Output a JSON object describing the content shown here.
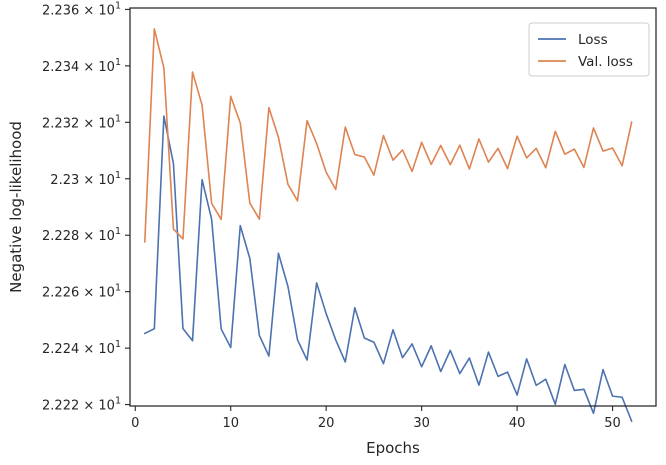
{
  "chart_data": {
    "type": "line",
    "xlabel": "Epochs",
    "ylabel": "Negative log-likelihood",
    "xlim": [
      -0.55,
      54.55
    ],
    "ylim": [
      22.2195,
      22.3605
    ],
    "x_ticks": [
      {
        "value": 0,
        "label": "0"
      },
      {
        "value": 10,
        "label": "10"
      },
      {
        "value": 20,
        "label": "20"
      },
      {
        "value": 30,
        "label": "30"
      },
      {
        "value": 40,
        "label": "40"
      },
      {
        "value": 50,
        "label": "50"
      }
    ],
    "y_ticks": [
      {
        "value": 22.22,
        "mantissa": "2.222",
        "exponent": "1"
      },
      {
        "value": 22.24,
        "mantissa": "2.224",
        "exponent": "1"
      },
      {
        "value": 22.26,
        "mantissa": "2.226",
        "exponent": "1"
      },
      {
        "value": 22.28,
        "mantissa": "2.228",
        "exponent": "1"
      },
      {
        "value": 22.3,
        "mantissa": "2.23",
        "exponent": "1"
      },
      {
        "value": 22.32,
        "mantissa": "2.232",
        "exponent": "1"
      },
      {
        "value": 22.34,
        "mantissa": "2.234",
        "exponent": "1"
      },
      {
        "value": 22.36,
        "mantissa": "2.236",
        "exponent": "1"
      }
    ],
    "legend_position": "top-right",
    "x": [
      1,
      2,
      3,
      4,
      5,
      6,
      7,
      8,
      9,
      10,
      11,
      12,
      13,
      14,
      15,
      16,
      17,
      18,
      19,
      20,
      21,
      22,
      23,
      24,
      25,
      26,
      27,
      28,
      29,
      30,
      31,
      32,
      33,
      34,
      35,
      36,
      37,
      38,
      39,
      40,
      41,
      42,
      43,
      44,
      45,
      46,
      47,
      48,
      49,
      50,
      51,
      52
    ],
    "series": [
      {
        "name": "Loss",
        "color": "#4c72b0",
        "values": [
          22.2452,
          22.2469,
          22.3222,
          22.3054,
          22.2469,
          22.2426,
          22.2997,
          22.2857,
          22.2468,
          22.2402,
          22.2834,
          22.2718,
          22.2445,
          22.2372,
          22.2736,
          22.2618,
          22.2429,
          22.2358,
          22.2631,
          22.2522,
          22.2429,
          22.2351,
          22.2543,
          22.2436,
          22.2421,
          22.2345,
          22.2465,
          22.2366,
          22.2415,
          22.2334,
          22.2408,
          22.2317,
          22.2392,
          22.231,
          22.2365,
          22.2269,
          22.2386,
          22.23,
          22.2315,
          22.2234,
          22.2362,
          22.2268,
          22.229,
          22.2201,
          22.2342,
          22.225,
          22.2254,
          22.2169,
          22.2324,
          22.223,
          22.2226,
          22.2141
        ]
      },
      {
        "name": "Val. loss",
        "color": "#dd8452",
        "values": [
          22.2776,
          22.3531,
          22.3392,
          22.2822,
          22.2787,
          22.3378,
          22.3261,
          22.2913,
          22.2856,
          22.3292,
          22.3198,
          22.2914,
          22.2857,
          22.3252,
          22.3147,
          22.298,
          22.2922,
          22.3206,
          22.3125,
          22.3023,
          22.2962,
          22.3183,
          22.3086,
          22.3077,
          22.3013,
          22.3153,
          22.3066,
          22.3102,
          22.3026,
          22.3129,
          22.3051,
          22.3118,
          22.305,
          22.3119,
          22.3035,
          22.3141,
          22.3059,
          22.3108,
          22.3036,
          22.3151,
          22.3074,
          22.3108,
          22.3039,
          22.3168,
          22.3087,
          22.3105,
          22.304,
          22.318,
          22.3098,
          22.3109,
          22.3046,
          22.3201
        ]
      }
    ]
  }
}
